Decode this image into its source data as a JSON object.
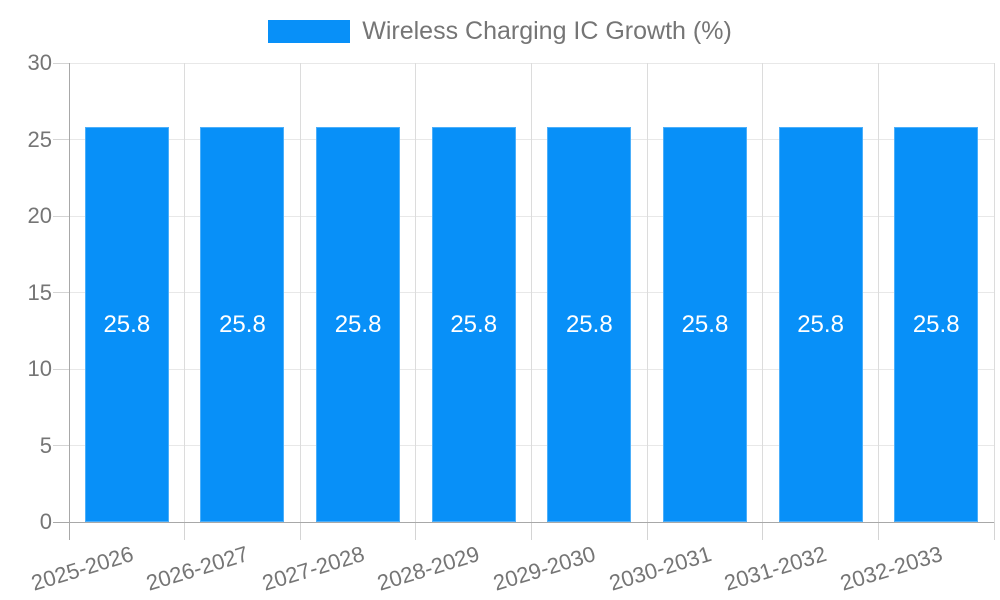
{
  "chart_data": {
    "type": "bar",
    "series_name": "Wireless Charging IC Growth (%)",
    "categories": [
      "2025-2026",
      "2026-2027",
      "2027-2028",
      "2028-2029",
      "2029-2030",
      "2030-2031",
      "2031-2032",
      "2032-2033"
    ],
    "values": [
      25.8,
      25.8,
      25.8,
      25.8,
      25.8,
      25.8,
      25.8,
      25.8
    ],
    "value_labels": [
      "25.8",
      "25.8",
      "25.8",
      "25.8",
      "25.8",
      "25.8",
      "25.8",
      "25.8"
    ],
    "ylim": [
      0,
      30
    ],
    "yticks": [
      0,
      5,
      10,
      15,
      20,
      25,
      30
    ],
    "grid": true,
    "legend_position": "top-center",
    "value_labels_shown": true,
    "colors": {
      "bar": "#0890f8",
      "bar_edge_highlight": "rgba(255,255,255,0.28)",
      "hgrid": "#e8e8e8",
      "vgrid": "#dcdcdc",
      "axis": "#a8a8a8",
      "tick": "#d4d4d4",
      "tick_label": "#757575",
      "value_label": "#ffffff",
      "background": "#ffffff"
    }
  }
}
